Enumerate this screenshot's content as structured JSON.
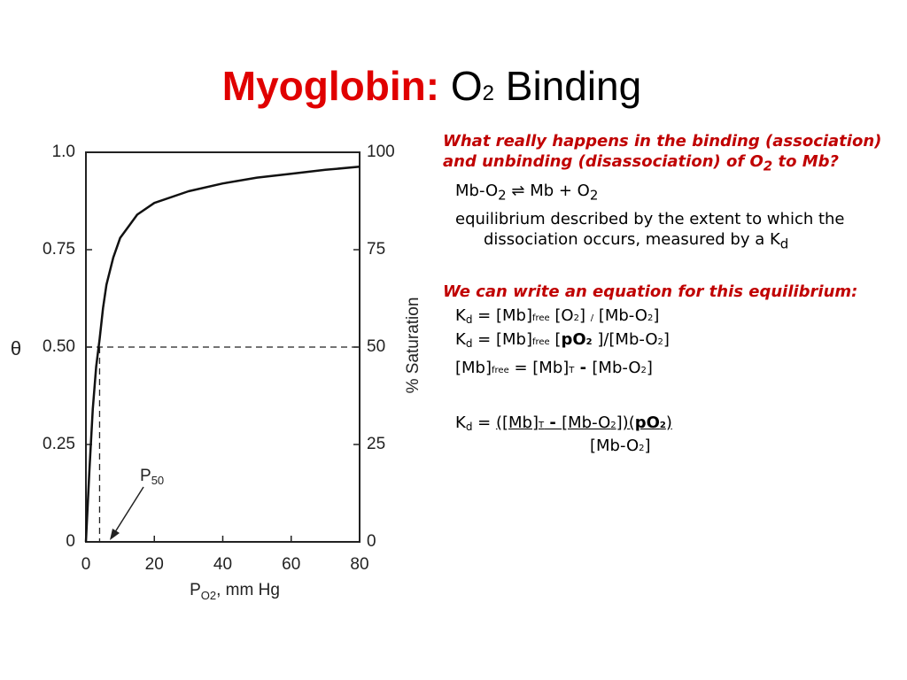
{
  "title": {
    "main": "Myoglobin:",
    "o": "O",
    "sub": "2",
    "rest": "Binding"
  },
  "chart_data": {
    "type": "line",
    "x": [
      0,
      1,
      2,
      3,
      4,
      5,
      6,
      8,
      10,
      15,
      20,
      30,
      40,
      50,
      60,
      70,
      80
    ],
    "series": [
      {
        "color": "#111111",
        "values": [
          0,
          0.18,
          0.34,
          0.45,
          0.52,
          0.6,
          0.66,
          0.73,
          0.78,
          0.84,
          0.87,
          0.9,
          0.92,
          0.935,
          0.945,
          0.955,
          0.963
        ]
      }
    ],
    "xlim": [
      0,
      80
    ],
    "xticks": [
      0,
      20,
      40,
      60,
      80
    ],
    "x_label": {
      "main": "P",
      "sub": "O2",
      "rest": ", mm Hg"
    },
    "ylim": [
      0,
      1
    ],
    "yticks": [
      0,
      0.25,
      {
        "value": 0.5,
        "label": "0.50"
      },
      0.75,
      {
        "value": 1,
        "label": "1.0"
      }
    ],
    "y_label": "θ",
    "y2lim": [
      0,
      100
    ],
    "y2ticks": [
      0,
      25,
      50,
      75,
      100
    ],
    "y2_label": "% Saturation",
    "half_saturation": 0.5,
    "p50": 4,
    "p50_label": {
      "main": "P",
      "sub": "50"
    }
  },
  "notes": {
    "q1": [
      "What really happens in the binding (association) and unbinding (disassociation) of O",
      "2",
      " to Mb?"
    ],
    "reaction": [
      "Mb-O",
      "2",
      " ⇌ Mb + O",
      "2"
    ],
    "equilibrium": [
      "equilibrium described by the extent to which the dissociation occurs, measured by a K",
      "d"
    ],
    "q2": "We can write an equation for this equilibrium:",
    "eq1": [
      "K",
      "d",
      " = [Mb]",
      "free",
      " [O",
      "2",
      "] ",
      "/",
      " [Mb-O",
      "2",
      "]"
    ],
    "eq2": [
      "K",
      "d",
      " = [Mb]",
      "free",
      " [",
      "pO",
      "2",
      " ]/[Mb-O",
      "2",
      "]"
    ],
    "eq3": [
      "[Mb]",
      "free",
      " = [Mb]",
      "T",
      " - ",
      " [Mb-O",
      "2",
      "]"
    ],
    "eq4": [
      "K",
      "d",
      " = ",
      "([Mb]",
      "T",
      " - ",
      "[Mb-O",
      "2",
      "])(",
      "pO",
      "2",
      ")"
    ],
    "denominator": [
      "[Mb-O",
      "2",
      "]"
    ]
  }
}
